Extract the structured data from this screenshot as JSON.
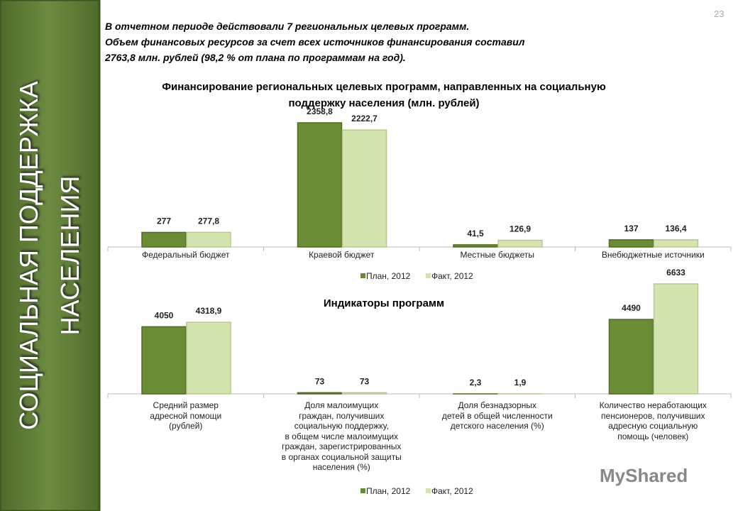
{
  "slide": {
    "page_number": "23",
    "sidebar_title": "СОЦИАЛЬНАЯ ПОДДЕРЖКА\nНАСЕЛЕНИЯ",
    "intro": "В отчетном периоде действовали 7 региональных целевых программ.\nОбъем финансовых ресурсов за счет всех источников финансирования составил\n2763,8 млн. рублей (98,2 % от плана по программам на год).",
    "watermark": "MyShared"
  },
  "chart_data": [
    {
      "type": "bar",
      "title": "Финансирование региональных целевых программ, направленных на социальную\nподдержку населения (млн. рублей)",
      "categories": [
        "Федеральный бюджет",
        "Краевой бюджет",
        "Местные бюджеты",
        "Внебюджетные источники"
      ],
      "series": [
        {
          "name": "План, 2012",
          "color": "#6a8c35",
          "values": [
            277,
            2358.8,
            41.5,
            137
          ],
          "value_labels": [
            "277",
            "2358,8",
            "41,5",
            "137"
          ]
        },
        {
          "name": "Факт, 2012",
          "color": "#d3e4ae",
          "values": [
            277.8,
            2222.7,
            126.9,
            136.4
          ],
          "value_labels": [
            "277,8",
            "2222,7",
            "126,9",
            "136,4"
          ]
        }
      ]
    },
    {
      "type": "bar",
      "title": "Индикаторы программ",
      "categories": [
        "Средний размер\nадресной помощи\n(рублей)",
        "Доля малоимущих\nграждан, получивших\nсоциальную поддержку,\nв общем числе малоимущих\nграждан, зарегистрированных\nв органах социальной защиты\nнаселения (%)",
        "Доля безнадзорных\nдетей в общей численности\nдетского населения (%)",
        "Количество неработающих\nпенсионеров, получивших\nадресную социальную\nпомощь (человек)"
      ],
      "series": [
        {
          "name": "План, 2012",
          "color": "#6a8c35",
          "values": [
            4050,
            73,
            2.3,
            4490
          ],
          "value_labels": [
            "4050",
            "73",
            "2,3",
            "4490"
          ]
        },
        {
          "name": "Факт, 2012",
          "color": "#d3e4ae",
          "values": [
            4318.9,
            73,
            1.9,
            6633
          ],
          "value_labels": [
            "4318,9",
            "73",
            "1,9",
            "6633"
          ]
        }
      ]
    }
  ]
}
